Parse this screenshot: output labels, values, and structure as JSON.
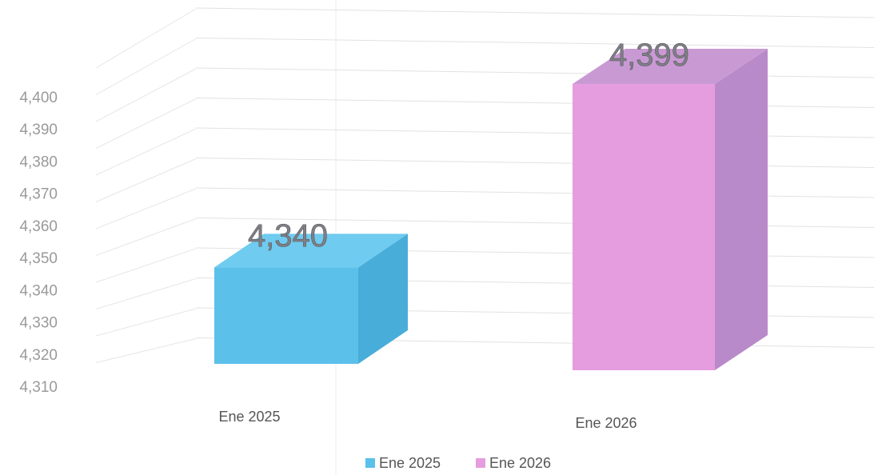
{
  "chart_data": {
    "type": "bar",
    "title": "",
    "xlabel": "",
    "ylabel": "",
    "categories": [
      "Ene 2025",
      "Ene 2026"
    ],
    "series": [
      {
        "name": "Ene 2025",
        "category": "Ene 2025",
        "value": 4340,
        "value_label": "4,340",
        "color": "#5bc0ea",
        "side_color": "#49add9",
        "top_color": "#6fcbef"
      },
      {
        "name": "Ene 2026",
        "category": "Ene 2026",
        "value": 4399,
        "value_label": "4,399",
        "color": "#e59ddf",
        "side_color": "#b98ac9",
        "top_color": "#c999d4"
      }
    ],
    "ylim": [
      4310,
      4400
    ],
    "yticks": [
      "4,310",
      "4,320",
      "4,330",
      "4,340",
      "4,350",
      "4,360",
      "4,370",
      "4,380",
      "4,390",
      "4,400"
    ],
    "grid": true,
    "three_d": true,
    "legend": {
      "position": "bottom",
      "entries": [
        "Ene 2025",
        "Ene 2026"
      ]
    }
  }
}
